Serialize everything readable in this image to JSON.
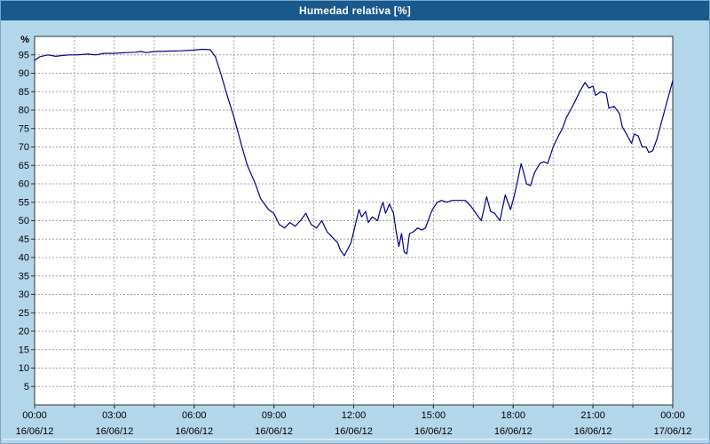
{
  "window": {
    "title": "Humedad relativa [%]"
  },
  "colors": {
    "titlebar": "#19598b",
    "frame_bg": "#b4d6ea",
    "plot_bg": "#ffffff",
    "grid": "#a0a0a0",
    "axis": "#303030",
    "line": "#00008b"
  },
  "chart_data": {
    "type": "line",
    "title": "Humedad relativa [%]",
    "xlabel": "",
    "ylabel": "%",
    "ylim": [
      0,
      100
    ],
    "xlim_hours": [
      0,
      24
    ],
    "x_minor_step": 1.5,
    "grid": "dashed",
    "legend": "none",
    "y_ticks": [
      95,
      90,
      85,
      80,
      75,
      70,
      65,
      60,
      55,
      50,
      45,
      40,
      35,
      30,
      25,
      20,
      15,
      10,
      5
    ],
    "x_ticks": [
      {
        "hour": 0,
        "time": "00:00",
        "date": "16/06/12"
      },
      {
        "hour": 3,
        "time": "03:00",
        "date": "16/06/12"
      },
      {
        "hour": 6,
        "time": "06:00",
        "date": "16/06/12"
      },
      {
        "hour": 9,
        "time": "09:00",
        "date": "16/06/12"
      },
      {
        "hour": 12,
        "time": "12:00",
        "date": "16/06/12"
      },
      {
        "hour": 15,
        "time": "15:00",
        "date": "16/06/12"
      },
      {
        "hour": 18,
        "time": "18:00",
        "date": "16/06/12"
      },
      {
        "hour": 21,
        "time": "21:00",
        "date": "16/06/12"
      },
      {
        "hour": 24,
        "time": "00:00",
        "date": "17/06/12"
      }
    ],
    "series": [
      {
        "name": "humedad-relativa",
        "x": [
          0,
          0.2,
          0.5,
          0.8,
          1,
          1.3,
          1.6,
          2,
          2.3,
          2.6,
          3,
          3.4,
          3.8,
          4,
          4.2,
          4.5,
          5,
          5.5,
          6,
          6.3,
          6.6,
          6.8,
          7,
          7.2,
          7.5,
          7.8,
          8,
          8.3,
          8.5,
          8.8,
          9,
          9.2,
          9.4,
          9.6,
          9.8,
          10,
          10.2,
          10.4,
          10.6,
          10.8,
          11,
          11.2,
          11.4,
          11.5,
          11.65,
          11.9,
          12,
          12.1,
          12.2,
          12.3,
          12.45,
          12.55,
          12.7,
          12.9,
          13,
          13.1,
          13.2,
          13.35,
          13.5,
          13.6,
          13.7,
          13.8,
          13.9,
          14,
          14.1,
          14.25,
          14.4,
          14.55,
          14.7,
          14.9,
          15,
          15.15,
          15.3,
          15.5,
          15.7,
          16,
          16.2,
          16.4,
          16.6,
          16.8,
          17,
          17.15,
          17.3,
          17.5,
          17.7,
          17.9,
          18.05,
          18.2,
          18.3,
          18.4,
          18.5,
          18.65,
          18.8,
          19,
          19.15,
          19.3,
          19.5,
          19.7,
          19.85,
          20,
          20.15,
          20.3,
          20.5,
          20.7,
          20.85,
          21,
          21.1,
          21.3,
          21.5,
          21.6,
          21.8,
          22,
          22.1,
          22.3,
          22.45,
          22.55,
          22.7,
          22.85,
          23,
          23.1,
          23.25,
          23.4,
          23.55,
          23.7,
          23.85,
          24
        ],
        "values": [
          93.5,
          94.5,
          95,
          94.6,
          94.8,
          95,
          95,
          95.2,
          95,
          95.4,
          95.4,
          95.6,
          95.7,
          95.9,
          95.6,
          95.9,
          96,
          96.1,
          96.3,
          96.5,
          96.4,
          94.5,
          90,
          85,
          78,
          70,
          65,
          60,
          56,
          53,
          52,
          49,
          48,
          49.5,
          48.5,
          50,
          52,
          49,
          48,
          50,
          47,
          45.5,
          44,
          42,
          40.5,
          44,
          47,
          50,
          53,
          51,
          52.5,
          49.5,
          51,
          50,
          53,
          55,
          52,
          54.5,
          52,
          47,
          43,
          46.5,
          41.5,
          41,
          46.5,
          47,
          48,
          47.5,
          48,
          52,
          53.5,
          55,
          55.5,
          55,
          55.5,
          55.5,
          55.5,
          54,
          52,
          50,
          56.5,
          52.5,
          52,
          50,
          57,
          53,
          57,
          62,
          65.5,
          63,
          60,
          59.5,
          63,
          65.5,
          66,
          65.5,
          70,
          73,
          75,
          78,
          80,
          82,
          85,
          87.5,
          86,
          86.5,
          84,
          85,
          84.5,
          80.5,
          81,
          79,
          75.5,
          73,
          71,
          73.5,
          73,
          70,
          70,
          68.5,
          69,
          72,
          76,
          80,
          84,
          88
        ]
      }
    ]
  }
}
